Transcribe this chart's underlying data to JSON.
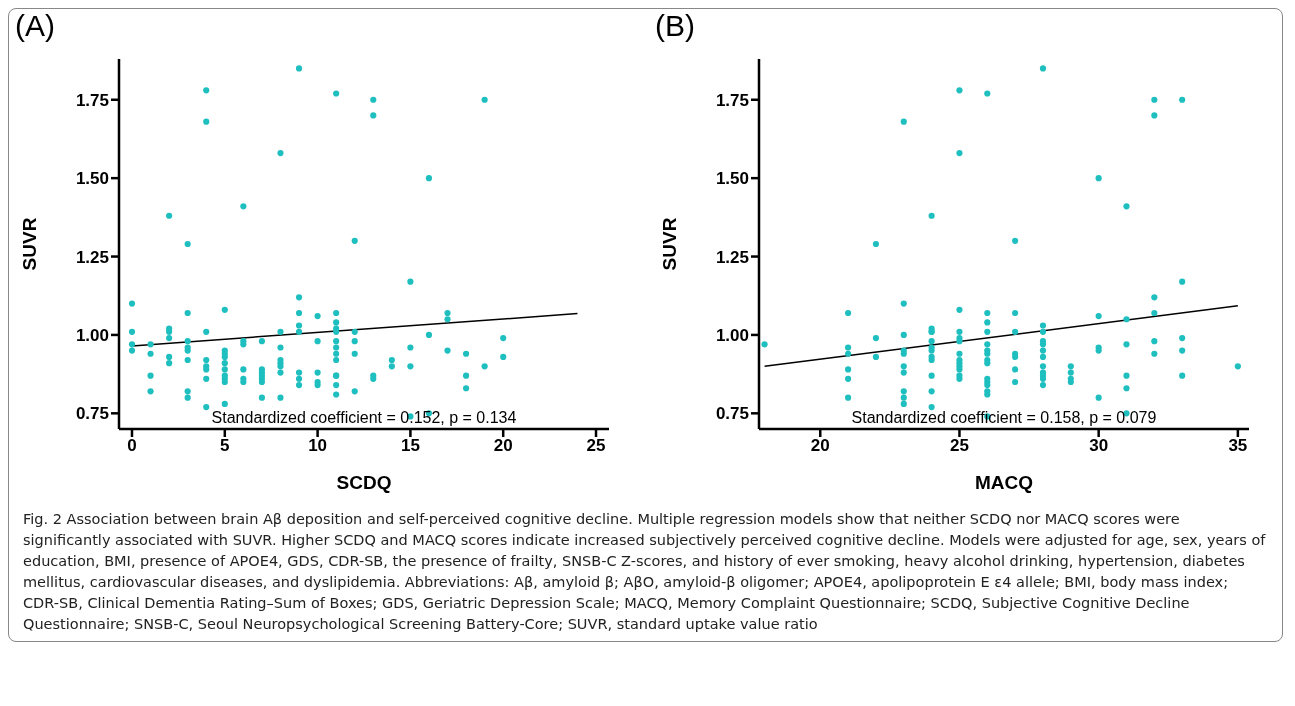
{
  "chart_data": [
    {
      "type": "scatter",
      "title": "(A)",
      "xlabel": "SCDQ",
      "ylabel": "SUVR",
      "xlim": [
        -0.7,
        25.7
      ],
      "xticks": [
        0,
        5,
        10,
        15,
        20,
        25
      ],
      "ylim": [
        0.7,
        1.88
      ],
      "yticks": [
        {
          "value": 0.75,
          "label": "0.75"
        },
        {
          "value": 1,
          "label": "1.00"
        },
        {
          "value": 1.25,
          "label": "1.25"
        },
        {
          "value": 1.5,
          "label": "1.50"
        },
        {
          "value": 1.75,
          "label": "1.75"
        }
      ],
      "grid": false,
      "marker": "circle",
      "series": [
        {
          "type": "scatter",
          "color": "#1fbfbf",
          "x": [
            0,
            0,
            0,
            0,
            1,
            1,
            1,
            1,
            2,
            2,
            2,
            2,
            2,
            2,
            3,
            3,
            3,
            3,
            3,
            3,
            3,
            3,
            4,
            4,
            4,
            4,
            4,
            4,
            4,
            4,
            5,
            5,
            5,
            5,
            5,
            5,
            5,
            5,
            5,
            5,
            6,
            6,
            6,
            6,
            6,
            6,
            7,
            7,
            7,
            7,
            7,
            7,
            7,
            8,
            8,
            8,
            8,
            8,
            8,
            8,
            8,
            9,
            9,
            9,
            9,
            9,
            9,
            9,
            9,
            10,
            10,
            10,
            10,
            10,
            11,
            11,
            11,
            11,
            11,
            11,
            11,
            11,
            11,
            11,
            11,
            11,
            11,
            12,
            12,
            12,
            12,
            12,
            13,
            13,
            13,
            13,
            14,
            14,
            15,
            15,
            15,
            15,
            16,
            16,
            16,
            17,
            17,
            17,
            18,
            18,
            18,
            19,
            19,
            20,
            20
          ],
          "values": [
            1.1,
            1.01,
            0.97,
            0.95,
            0.97,
            0.94,
            0.87,
            0.82,
            1.38,
            1.02,
            1.01,
            0.99,
            0.93,
            0.91,
            1.29,
            1.07,
            0.98,
            0.96,
            0.95,
            0.92,
            0.82,
            0.8,
            1.78,
            1.68,
            1.01,
            0.92,
            0.9,
            0.89,
            0.86,
            0.77,
            1.08,
            0.95,
            0.94,
            0.93,
            0.91,
            0.89,
            0.87,
            0.86,
            0.85,
            0.78,
            1.41,
            0.98,
            0.97,
            0.89,
            0.86,
            0.85,
            0.98,
            0.89,
            0.88,
            0.87,
            0.86,
            0.85,
            0.8,
            1.58,
            1.01,
            0.96,
            0.92,
            0.91,
            0.9,
            0.88,
            0.8,
            1.85,
            1.12,
            1.07,
            1.03,
            1.01,
            0.88,
            0.86,
            0.84,
            1.06,
            0.98,
            0.88,
            0.85,
            0.84,
            1.77,
            1.07,
            1.04,
            1.02,
            1.01,
            0.98,
            0.96,
            0.94,
            0.92,
            0.87,
            0.87,
            0.84,
            0.81,
            1.3,
            1.01,
            0.98,
            0.94,
            0.82,
            1.75,
            1.7,
            0.87,
            0.86,
            0.92,
            0.9,
            1.17,
            0.96,
            0.9,
            0.74,
            1.5,
            1.0,
            0.75,
            1.07,
            1.05,
            0.95,
            0.94,
            0.87,
            0.83,
            1.75,
            0.9,
            0.99,
            0.93
          ]
        },
        {
          "type": "line",
          "color": "#000000",
          "marker": "none",
          "x": [
            0,
            24
          ],
          "values": [
            0.965,
            1.068
          ]
        }
      ],
      "annotations": [
        "Standardized coefficient = 0.152, p = 0.134"
      ]
    },
    {
      "type": "scatter",
      "title": "(B)",
      "xlabel": "MACQ",
      "ylabel": "SUVR",
      "xlim": [
        17.8,
        35.4
      ],
      "xticks": [
        20,
        25,
        30,
        35
      ],
      "ylim": [
        0.7,
        1.88
      ],
      "yticks": [
        {
          "value": 0.75,
          "label": "0.75"
        },
        {
          "value": 1,
          "label": "1.00"
        },
        {
          "value": 1.25,
          "label": "1.25"
        },
        {
          "value": 1.5,
          "label": "1.50"
        },
        {
          "value": 1.75,
          "label": "1.75"
        }
      ],
      "grid": false,
      "marker": "circle",
      "series": [
        {
          "type": "scatter",
          "color": "#1fbfbf",
          "x": [
            18,
            21,
            21,
            21,
            21,
            21,
            21,
            22,
            22,
            22,
            23,
            23,
            23,
            23,
            23,
            23,
            23,
            23,
            23,
            23,
            24,
            24,
            24,
            24,
            24,
            24,
            24,
            24,
            24,
            24,
            24,
            24,
            25,
            25,
            25,
            25,
            25,
            25,
            25,
            25,
            25,
            25,
            25,
            25,
            25,
            26,
            26,
            26,
            26,
            26,
            26,
            26,
            26,
            26,
            26,
            26,
            26,
            26,
            26,
            26,
            27,
            27,
            27,
            27,
            27,
            27,
            27,
            28,
            28,
            28,
            28,
            28,
            28,
            28,
            28,
            28,
            28,
            28,
            28,
            29,
            29,
            29,
            29,
            30,
            30,
            30,
            30,
            30,
            31,
            31,
            31,
            31,
            31,
            31,
            32,
            32,
            32,
            32,
            32,
            32,
            33,
            33,
            33,
            33,
            33,
            35
          ],
          "values": [
            0.97,
            1.07,
            0.96,
            0.94,
            0.89,
            0.86,
            0.8,
            1.29,
            0.99,
            0.93,
            1.68,
            1.1,
            1.0,
            0.95,
            0.94,
            0.9,
            0.88,
            0.82,
            0.8,
            0.78,
            1.38,
            1.02,
            1.01,
            1.01,
            0.98,
            0.96,
            0.95,
            0.93,
            0.92,
            0.87,
            0.82,
            0.77,
            1.78,
            1.58,
            1.08,
            1.01,
            0.99,
            0.98,
            0.94,
            0.92,
            0.91,
            0.9,
            0.89,
            0.87,
            0.86,
            1.77,
            1.07,
            1.04,
            1.01,
            0.97,
            0.95,
            0.94,
            0.92,
            0.91,
            0.86,
            0.85,
            0.84,
            0.82,
            0.81,
            0.74,
            1.3,
            1.07,
            1.01,
            0.94,
            0.93,
            0.89,
            0.85,
            1.85,
            1.03,
            1.01,
            0.98,
            0.97,
            0.95,
            0.93,
            0.9,
            0.88,
            0.87,
            0.86,
            0.84,
            0.9,
            0.88,
            0.86,
            0.85,
            1.5,
            1.06,
            0.96,
            0.95,
            0.8,
            1.41,
            1.05,
            0.97,
            0.87,
            0.83,
            0.75,
            1.75,
            1.7,
            1.12,
            1.07,
            0.98,
            0.94,
            1.75,
            1.17,
            0.99,
            0.95,
            0.87,
            0.9
          ]
        },
        {
          "type": "line",
          "color": "#000000",
          "marker": "none",
          "x": [
            18,
            35
          ],
          "values": [
            0.9,
            1.093
          ]
        }
      ],
      "annotations": [
        "Standardized coefficient = 0.158, p = 0.079",
        "Fig. 2  Association between brain Aβ deposition and self-perceived cognitive decline. Multiple regression models show that neither SCDQ nor MACQ scores were significantly associated with SUVR. Higher SCDQ and MACQ scores indicate increased subjectively perceived cognitive decline. Models were adjusted for age, sex, years of education, BMI, presence of APOE4, GDS, CDR-SB, the presence of frailty, SNSB-C Z-scores, and history of ever smoking, heavy alcohol drinking, hypertension, diabetes mellitus, cardiovascular diseases, and dyslipidemia. Abbreviations: Aβ, amyloid β; AβO, amyloid-β oligomer; APOE4, apolipoprotein E ε4 allele; BMI, body mass index; CDR-SB, Clinical Dementia Rating–Sum of Boxes; GDS, Geriatric Depression Scale; MACQ, Memory Complaint Questionnaire; SCDQ, Subjective Cognitive Decline Questionnaire; SNSB-C, Seoul Neuropsychological Screening Battery-Core; SUVR, standard uptake value ratio"
      ]
    }
  ]
}
